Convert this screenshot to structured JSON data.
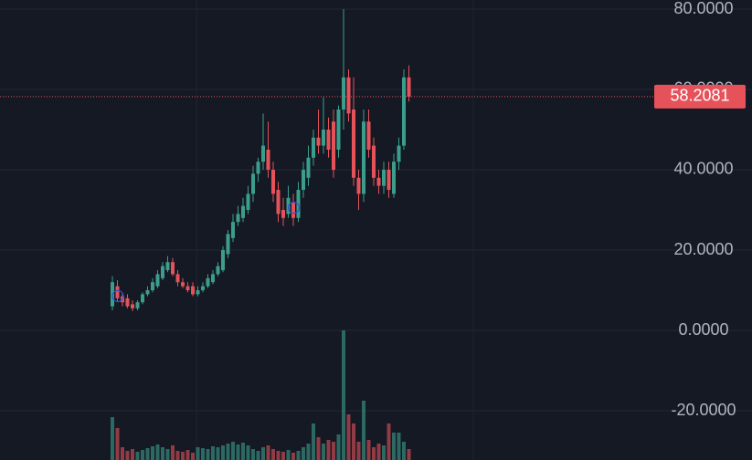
{
  "chart_data": {
    "type": "candlestick",
    "open": [
      6,
      11,
      8.5,
      8,
      6.5,
      5.5,
      7,
      9,
      10,
      11,
      13,
      15,
      17,
      14,
      12,
      11,
      11,
      9,
      10,
      11,
      12,
      14,
      15,
      19,
      23,
      27,
      28,
      30,
      34,
      39,
      42,
      45,
      40,
      35,
      30,
      29,
      32,
      28,
      35,
      38,
      43,
      48,
      46,
      50,
      52,
      45,
      55,
      63,
      55,
      38,
      34,
      52,
      46,
      38,
      36,
      40,
      34,
      42,
      46,
      63
    ],
    "high": [
      13.5,
      12.5,
      9.5,
      9,
      7.5,
      7.5,
      9.5,
      11,
      13,
      15,
      17,
      18.5,
      18,
      15,
      13,
      12,
      12,
      11,
      12,
      14,
      15,
      17,
      21,
      25,
      29,
      31,
      33,
      36,
      41,
      43,
      54,
      52,
      42,
      37,
      33,
      36,
      34,
      37,
      42,
      46,
      50,
      55,
      58,
      53,
      55,
      56,
      80,
      65,
      63,
      40,
      55,
      55,
      48,
      40,
      42,
      42,
      44,
      48,
      65,
      66
    ],
    "low": [
      5,
      7,
      6,
      5.5,
      4.8,
      5,
      6.5,
      8.5,
      9.5,
      10.5,
      12.5,
      14.5,
      13.5,
      11,
      10.5,
      9.5,
      8.5,
      8.5,
      9.5,
      10.5,
      11.5,
      13.5,
      14.5,
      18,
      22,
      26,
      27,
      29,
      32,
      37,
      40,
      38,
      32,
      27,
      26,
      28,
      26,
      27,
      33,
      36,
      41,
      44,
      44,
      43,
      38,
      43,
      50,
      52,
      36,
      30,
      32,
      43,
      36,
      34,
      34,
      33,
      33,
      40,
      45,
      57
    ],
    "close": [
      12,
      8,
      7,
      6,
      5.5,
      7,
      9,
      10,
      12,
      14,
      16,
      17,
      14,
      12,
      11,
      10,
      9,
      10,
      11,
      13,
      14,
      16,
      20,
      24,
      27,
      29,
      31,
      34,
      39,
      42,
      46,
      40,
      34,
      29,
      28,
      33,
      28,
      35,
      40,
      43,
      48,
      46,
      50,
      45,
      40,
      55,
      63,
      54,
      38,
      34,
      52,
      45,
      38,
      36,
      40,
      35,
      42,
      46,
      63,
      58.2081
    ],
    "volume": [
      47,
      35,
      14,
      10,
      12,
      9,
      11,
      13,
      15,
      17,
      14,
      12,
      16,
      10,
      9,
      11,
      8,
      14,
      13,
      12,
      15,
      14,
      16,
      18,
      20,
      17,
      19,
      16,
      12,
      10,
      14,
      16,
      12,
      10,
      9,
      11,
      8,
      10,
      14,
      18,
      40,
      25,
      18,
      22,
      20,
      28,
      142,
      50,
      40,
      20,
      65,
      22,
      14,
      18,
      16,
      40,
      30,
      30,
      20,
      12
    ],
    "up_color": "#3b9e8c",
    "down_color": "#e5525a",
    "ylim": [
      -32.27,
      82.27
    ],
    "yticks": [
      {
        "value": 80,
        "label": "80.0000"
      },
      {
        "value": 60,
        "label": "60.0000"
      },
      {
        "value": 40,
        "label": "40.0000"
      },
      {
        "value": 20,
        "label": "20.0000"
      },
      {
        "value": 0,
        "label": "0.0000"
      },
      {
        "value": -20,
        "label": "-20.0000"
      }
    ],
    "grid": true,
    "last_price": 58.2081
  }
}
